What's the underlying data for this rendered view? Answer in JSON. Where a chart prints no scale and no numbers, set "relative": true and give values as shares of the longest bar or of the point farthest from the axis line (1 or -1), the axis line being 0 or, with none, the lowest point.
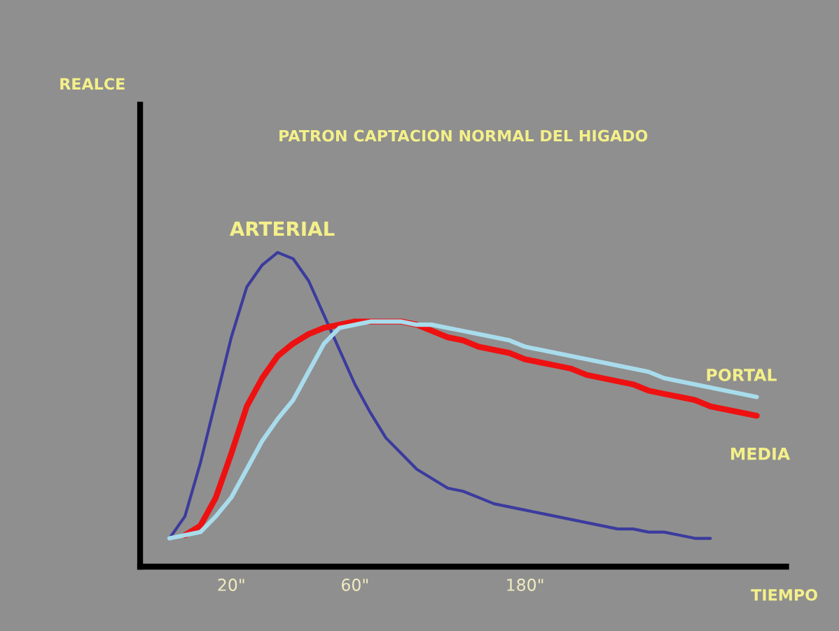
{
  "chart_data": {
    "type": "line",
    "title": "PATRON CAPTACION NORMAL DEL HIGADO",
    "xlabel": "TIEMPO",
    "annotations": [
      "REALCE"
    ],
    "relative": true,
    "tick_labels": "x",
    "grid": false,
    "legend": false,
    "marker": "none",
    "line_style": "solid",
    "categories": [
      null,
      null,
      null,
      null,
      "20\"",
      null,
      null,
      null,
      null,
      null,
      null,
      null,
      "60\"",
      null,
      null,
      null,
      null,
      null,
      null,
      null,
      null,
      null,
      null,
      "180\"",
      null,
      null,
      null,
      null,
      null,
      null,
      null,
      null,
      null,
      null,
      null,
      null,
      null,
      null,
      null
    ],
    "series": [
      {
        "name": "ARTERIAL",
        "color": "#3b3b9e",
        "values": [
          0.09,
          0.16,
          0.33,
          0.53,
          0.73,
          0.89,
          0.96,
          1.0,
          0.98,
          0.91,
          0.8,
          0.69,
          0.58,
          0.49,
          0.41,
          0.36,
          0.31,
          0.28,
          0.25,
          0.24,
          0.22,
          0.2,
          0.19,
          0.18,
          0.17,
          0.16,
          0.15,
          0.14,
          0.13,
          0.12,
          0.12,
          0.11,
          0.11,
          0.1,
          0.09,
          0.09,
          null,
          null,
          null
        ]
      },
      {
        "name": "MEDIA",
        "color": "#ee1111",
        "values": [
          null,
          0.1,
          0.13,
          0.22,
          0.36,
          0.51,
          0.6,
          0.67,
          0.71,
          0.74,
          0.76,
          0.77,
          0.78,
          0.78,
          0.78,
          0.78,
          0.77,
          0.75,
          0.73,
          0.72,
          0.7,
          0.69,
          0.68,
          0.66,
          0.65,
          0.64,
          0.63,
          0.61,
          0.6,
          0.59,
          0.58,
          0.56,
          0.55,
          0.54,
          0.53,
          0.51,
          0.5,
          0.49,
          0.48
        ]
      },
      {
        "name": "PORTAL",
        "color": "#a8dcec",
        "values": [
          0.09,
          0.1,
          0.11,
          0.16,
          0.22,
          0.31,
          0.4,
          0.47,
          0.53,
          0.62,
          0.71,
          0.76,
          0.77,
          0.78,
          0.78,
          0.78,
          0.77,
          0.77,
          0.76,
          0.75,
          0.74,
          0.73,
          0.72,
          0.7,
          0.69,
          0.68,
          0.67,
          0.66,
          0.65,
          0.64,
          0.63,
          0.62,
          0.6,
          0.59,
          0.58,
          0.57,
          0.56,
          0.55,
          0.54
        ]
      }
    ]
  }
}
